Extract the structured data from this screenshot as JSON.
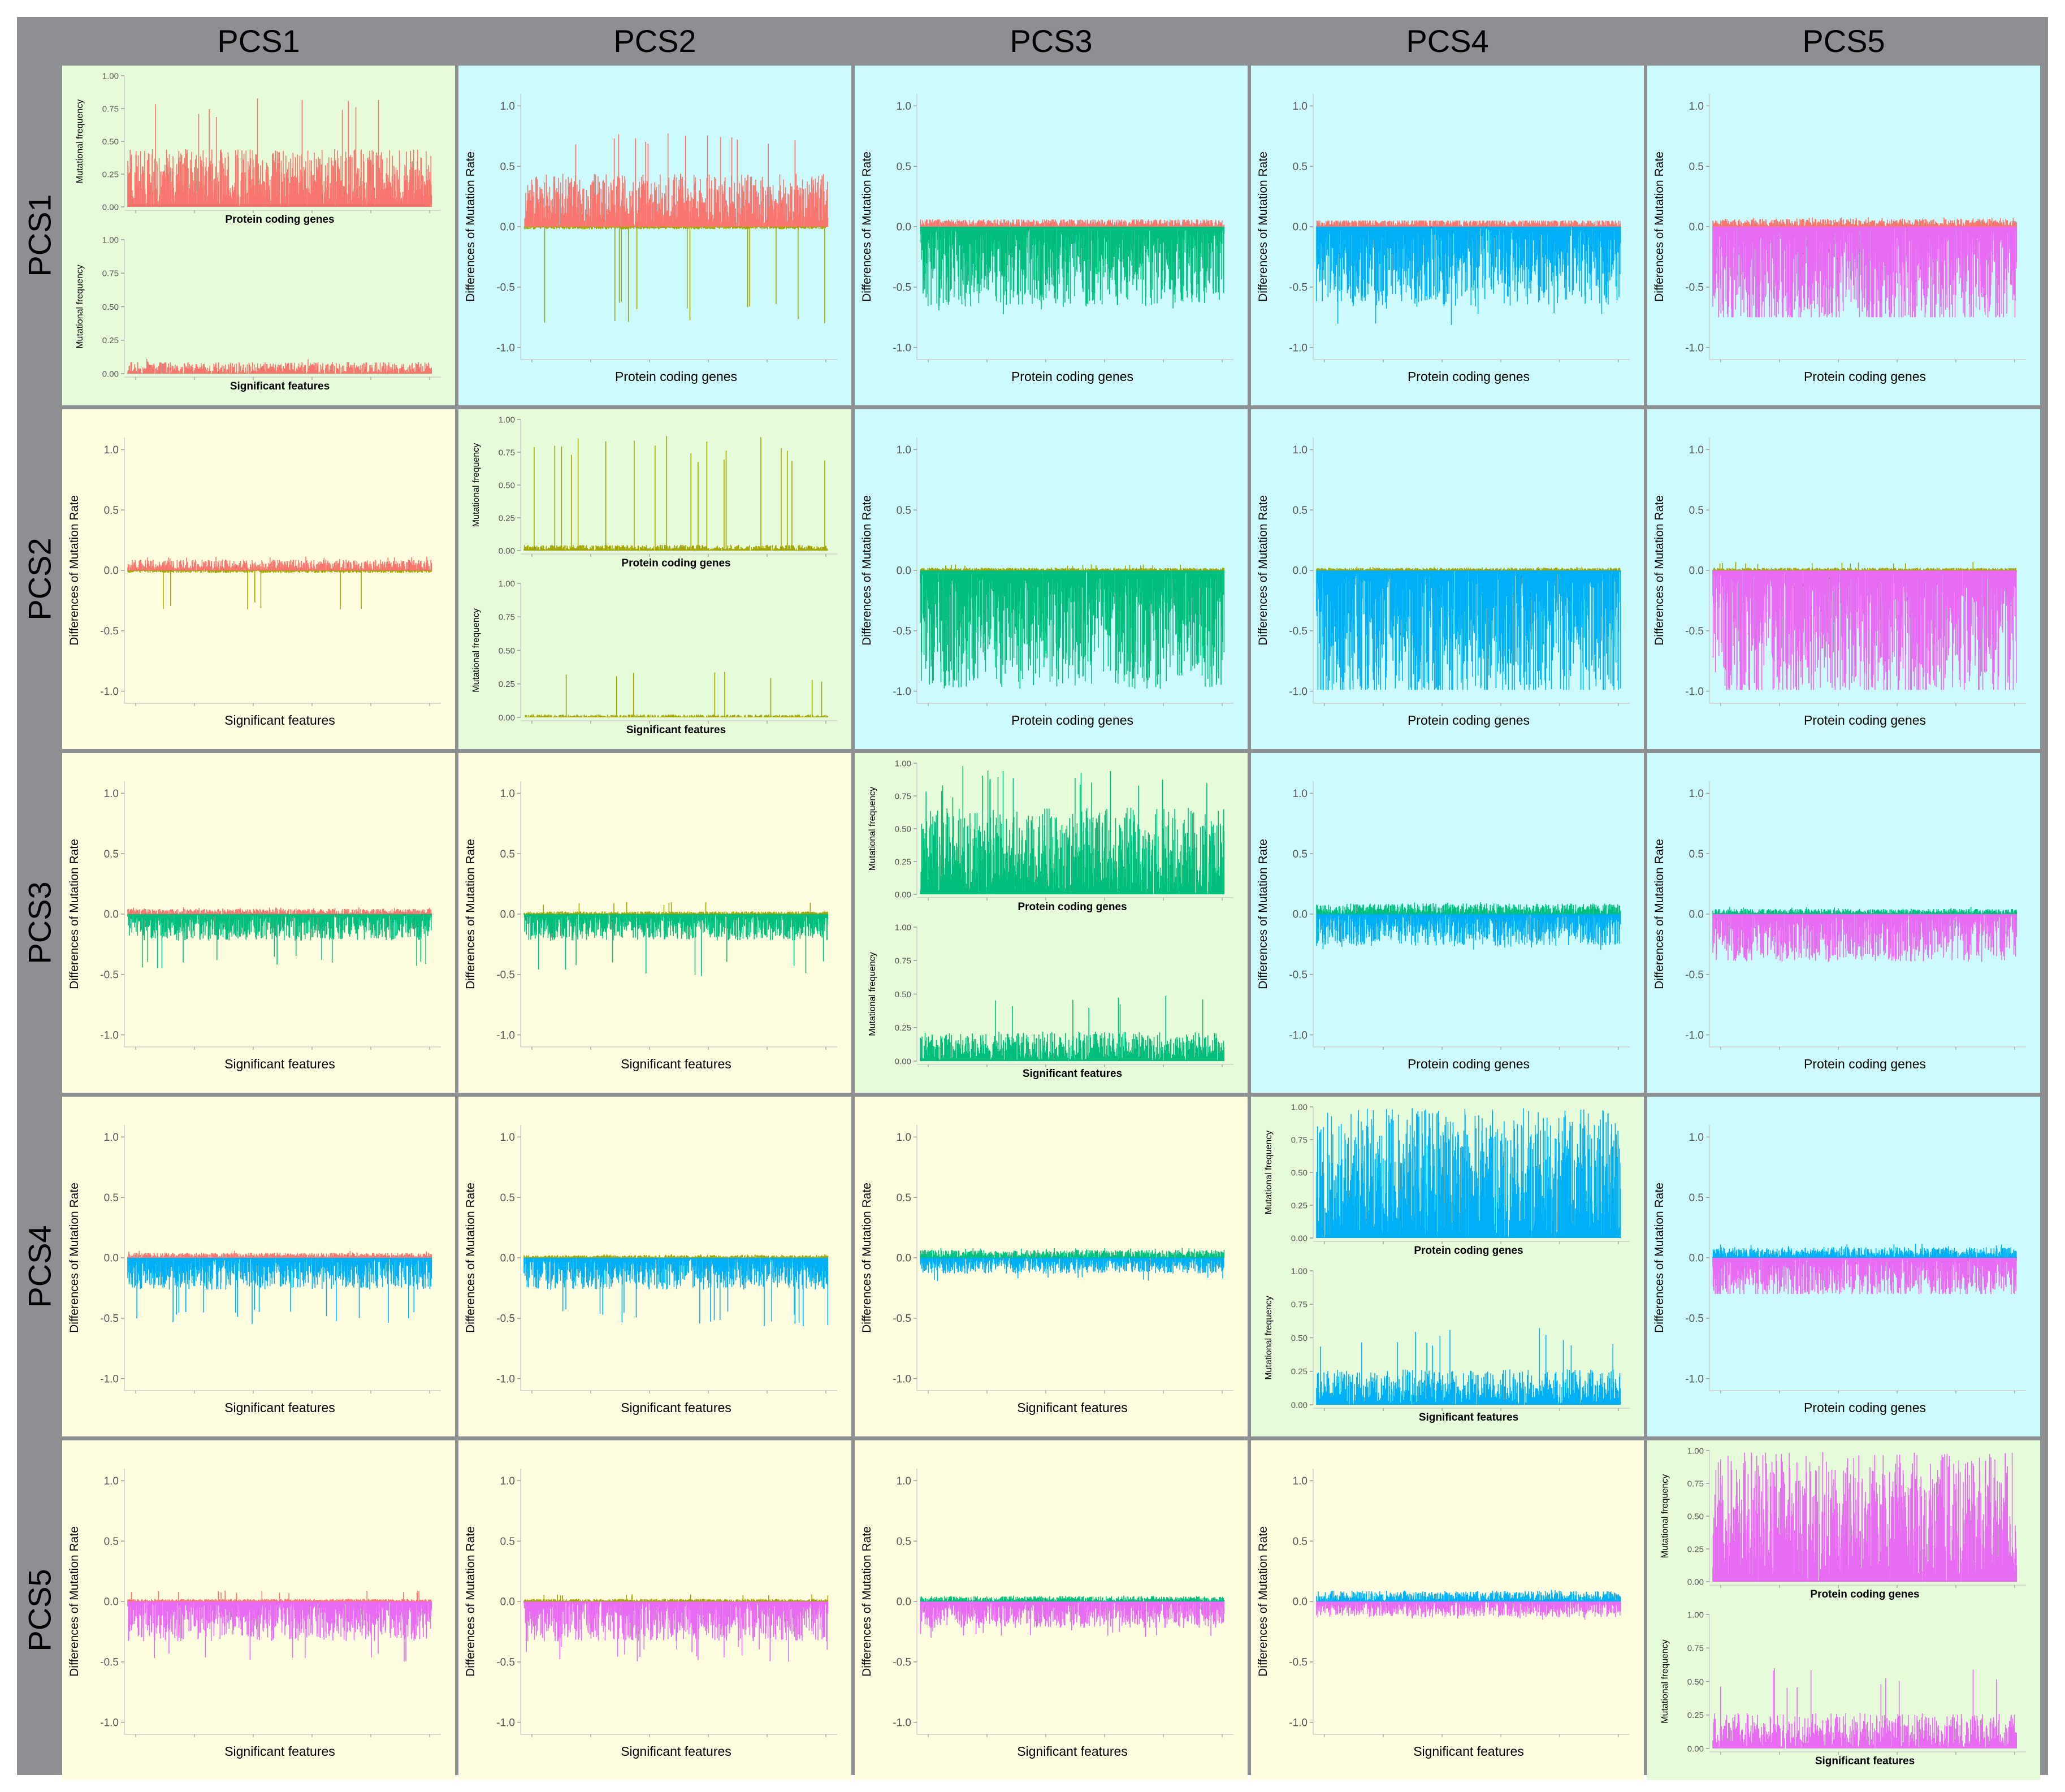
{
  "column_headers": [
    "PCS1",
    "PCS2",
    "PCS3",
    "PCS4",
    "PCS5"
  ],
  "row_headers": [
    "PCS1",
    "PCS2",
    "PCS3",
    "PCS4",
    "PCS5"
  ],
  "colors": {
    "frame": "#8e8f93",
    "diagonal_bg": "#e6fbd9",
    "upper_bg": "#cdfbfd",
    "lower_bg": "#fffde0",
    "PCS1": "#f8766d",
    "PCS2": "#a3a500",
    "PCS3": "#00bf7d",
    "PCS4": "#00b0f6",
    "PCS5": "#e76bf3"
  },
  "labels": {
    "mutational_frequency": "Mutational frequency",
    "differences": "Differences of Mutation Rate",
    "protein_coding_genes": "Protein coding genes",
    "significant_features": "Significant features"
  },
  "chart_data": {
    "type": "bar",
    "layout": "5x5 matrix of panels (rows vs columns of PCS groups)",
    "diagonal_panels": {
      "ylabel": "Mutational frequency",
      "ylim": [
        0,
        1
      ],
      "yticks": [
        "0.00",
        "0.25",
        "0.50",
        "0.75",
        "1.00"
      ],
      "top_xlabel": "Protein coding genes",
      "bottom_xlabel": "Significant features",
      "cells": [
        {
          "group": "PCS1",
          "protein_coding_max": 0.83,
          "protein_coding_typical": 0.2,
          "significant_max": 0.11,
          "significant_typical": 0.04
        },
        {
          "group": "PCS2",
          "protein_coding_max": 0.88,
          "protein_coding_typical": 0.02,
          "significant_max": 0.35,
          "significant_typical": 0.01
        },
        {
          "group": "PCS3",
          "protein_coding_max": 0.98,
          "protein_coding_typical": 0.3,
          "significant_max": 0.51,
          "significant_typical": 0.1
        },
        {
          "group": "PCS4",
          "protein_coding_max": 0.99,
          "protein_coding_typical": 0.45,
          "significant_max": 0.58,
          "significant_typical": 0.12
        },
        {
          "group": "PCS5",
          "protein_coding_max": 0.99,
          "protein_coding_typical": 0.45,
          "significant_max": 0.6,
          "significant_typical": 0.12
        }
      ]
    },
    "difference_panels": {
      "ylabel": "Differences of Mutation Rate",
      "ylim": [
        -1.1,
        1.1
      ],
      "yticks": [
        "-1.0",
        "-0.5",
        "0.0",
        "0.5",
        "1.0"
      ],
      "cells": [
        {
          "row": "PCS1",
          "col": "PCS2",
          "xlabel": "Protein coding genes",
          "pos_group": "PCS1",
          "neg_group": "PCS2",
          "pos_max": 0.8,
          "pos_typical": 0.2,
          "neg_max": -0.8,
          "neg_typical": -0.01
        },
        {
          "row": "PCS1",
          "col": "PCS3",
          "xlabel": "Protein coding genes",
          "pos_group": "PCS1",
          "neg_group": "PCS3",
          "pos_max": 0.06,
          "pos_typical": 0.03,
          "neg_max": -0.75,
          "neg_typical": -0.3
        },
        {
          "row": "PCS1",
          "col": "PCS4",
          "xlabel": "Protein coding genes",
          "pos_group": "PCS1",
          "neg_group": "PCS4",
          "pos_max": 0.05,
          "pos_typical": 0.03,
          "neg_max": -0.82,
          "neg_typical": -0.3
        },
        {
          "row": "PCS1",
          "col": "PCS5",
          "xlabel": "Protein coding genes",
          "pos_group": "PCS1",
          "neg_group": "PCS5",
          "pos_max": 0.08,
          "pos_typical": 0.03,
          "neg_max": -0.75,
          "neg_typical": -0.4
        },
        {
          "row": "PCS2",
          "col": "PCS1",
          "xlabel": "Significant features",
          "pos_group": "PCS1",
          "neg_group": "PCS2",
          "pos_max": 0.12,
          "pos_typical": 0.04,
          "neg_max": -0.33,
          "neg_typical": -0.01
        },
        {
          "row": "PCS2",
          "col": "PCS3",
          "xlabel": "Protein coding genes",
          "pos_group": "PCS2",
          "neg_group": "PCS3",
          "pos_max": 0.05,
          "pos_typical": 0.01,
          "neg_max": -0.98,
          "neg_typical": -0.45
        },
        {
          "row": "PCS2",
          "col": "PCS4",
          "xlabel": "Protein coding genes",
          "pos_group": "PCS2",
          "neg_group": "PCS4",
          "pos_max": 0.03,
          "pos_typical": 0.01,
          "neg_max": -0.99,
          "neg_typical": -0.5
        },
        {
          "row": "PCS2",
          "col": "PCS5",
          "xlabel": "Protein coding genes",
          "pos_group": "PCS2",
          "neg_group": "PCS5",
          "pos_max": 0.07,
          "pos_typical": 0.01,
          "neg_max": -0.99,
          "neg_typical": -0.5
        },
        {
          "row": "PCS3",
          "col": "PCS1",
          "xlabel": "Significant features",
          "pos_group": "PCS1",
          "neg_group": "PCS3",
          "pos_max": 0.06,
          "pos_typical": 0.02,
          "neg_max": -0.45,
          "neg_typical": -0.1
        },
        {
          "row": "PCS3",
          "col": "PCS2",
          "xlabel": "Significant features",
          "pos_group": "PCS2",
          "neg_group": "PCS3",
          "pos_max": 0.1,
          "pos_typical": 0.01,
          "neg_max": -0.52,
          "neg_typical": -0.1
        },
        {
          "row": "PCS3",
          "col": "PCS4",
          "xlabel": "Protein coding genes",
          "pos_group": "PCS3",
          "neg_group": "PCS4",
          "pos_max": 0.1,
          "pos_typical": 0.04,
          "neg_max": -0.3,
          "neg_typical": -0.12
        },
        {
          "row": "PCS3",
          "col": "PCS5",
          "xlabel": "Protein coding genes",
          "pos_group": "PCS3",
          "neg_group": "PCS5",
          "pos_max": 0.06,
          "pos_typical": 0.02,
          "neg_max": -0.4,
          "neg_typical": -0.18
        },
        {
          "row": "PCS4",
          "col": "PCS1",
          "xlabel": "Significant features",
          "pos_group": "PCS1",
          "neg_group": "PCS4",
          "pos_max": 0.06,
          "pos_typical": 0.02,
          "neg_max": -0.55,
          "neg_typical": -0.12
        },
        {
          "row": "PCS4",
          "col": "PCS2",
          "xlabel": "Significant features",
          "pos_group": "PCS2",
          "neg_group": "PCS4",
          "pos_max": 0.03,
          "pos_typical": 0.01,
          "neg_max": -0.57,
          "neg_typical": -0.12
        },
        {
          "row": "PCS4",
          "col": "PCS3",
          "xlabel": "Significant features",
          "pos_group": "PCS3",
          "neg_group": "PCS4",
          "pos_max": 0.09,
          "pos_typical": 0.03,
          "neg_max": -0.2,
          "neg_typical": -0.06
        },
        {
          "row": "PCS4",
          "col": "PCS5",
          "xlabel": "Protein coding genes",
          "pos_group": "PCS4",
          "neg_group": "PCS5",
          "pos_max": 0.12,
          "pos_typical": 0.04,
          "neg_max": -0.3,
          "neg_typical": -0.15
        },
        {
          "row": "PCS5",
          "col": "PCS1",
          "xlabel": "Significant features",
          "pos_group": "PCS1",
          "neg_group": "PCS5",
          "pos_max": 0.09,
          "pos_typical": 0.01,
          "neg_max": -0.5,
          "neg_typical": -0.15
        },
        {
          "row": "PCS5",
          "col": "PCS2",
          "xlabel": "Significant features",
          "pos_group": "PCS2",
          "neg_group": "PCS5",
          "pos_max": 0.06,
          "pos_typical": 0.01,
          "neg_max": -0.5,
          "neg_typical": -0.15
        },
        {
          "row": "PCS5",
          "col": "PCS3",
          "xlabel": "Significant features",
          "pos_group": "PCS3",
          "neg_group": "PCS5",
          "pos_max": 0.05,
          "pos_typical": 0.02,
          "neg_max": -0.3,
          "neg_typical": -0.1
        },
        {
          "row": "PCS5",
          "col": "PCS4",
          "xlabel": "Significant features",
          "pos_group": "PCS4",
          "neg_group": "PCS5",
          "pos_max": 0.1,
          "pos_typical": 0.04,
          "neg_max": -0.15,
          "neg_typical": -0.06
        }
      ]
    }
  }
}
